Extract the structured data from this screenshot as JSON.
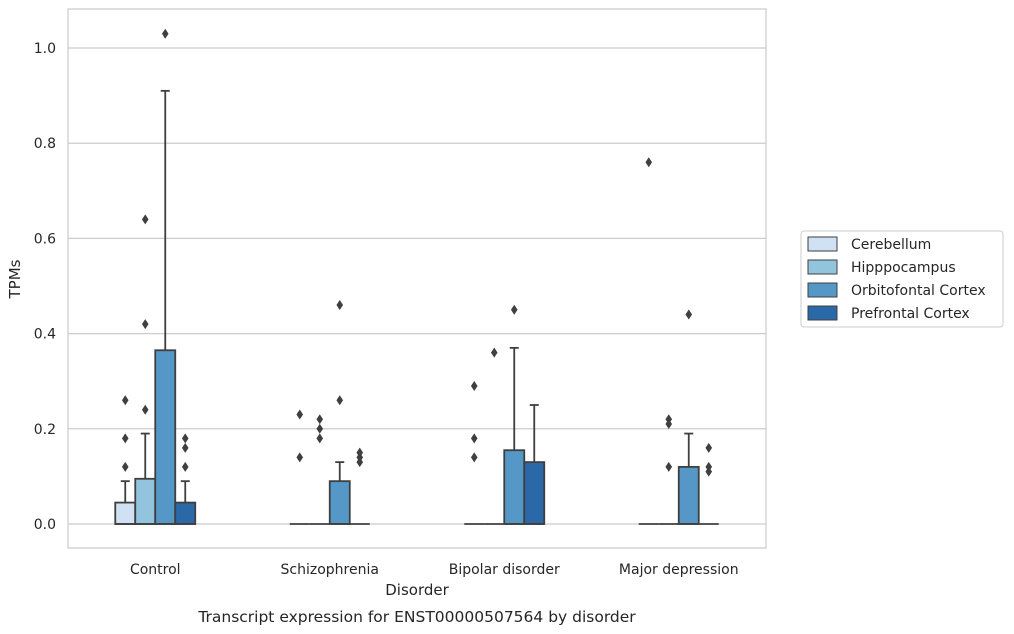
{
  "chart_data": {
    "type": "box",
    "title": "",
    "caption": "Transcript expression for ENST00000507564 by disorder",
    "xlabel": "Disorder",
    "ylabel": "TPMs",
    "ylim": [
      -0.05,
      1.08
    ],
    "yticks": [
      0.0,
      0.2,
      0.4,
      0.6,
      0.8,
      1.0
    ],
    "ytick_labels": [
      "0.0",
      "0.2",
      "0.4",
      "0.6",
      "0.8",
      "1.0"
    ],
    "grid": "horizontal",
    "legend_position": "right",
    "categories": [
      "Control",
      "Schizophrenia",
      "Bipolar disorder",
      "Major depression"
    ],
    "series": [
      {
        "name": "Cerebellum",
        "color": "#cfe1f2",
        "boxes": [
          {
            "whislo": 0.0,
            "q1": 0.0,
            "med": 0.0,
            "q3": 0.045,
            "whishi": 0.09,
            "fliers": [
              0.12,
              0.18,
              0.26
            ]
          },
          {
            "whislo": 0.0,
            "q1": 0.0,
            "med": 0.0,
            "q3": 0.0,
            "whishi": 0.0,
            "fliers": [
              0.14,
              0.23
            ]
          },
          {
            "whislo": 0.0,
            "q1": 0.0,
            "med": 0.0,
            "q3": 0.0,
            "whishi": 0.0,
            "fliers": [
              0.14,
              0.18,
              0.29
            ]
          },
          {
            "whislo": 0.0,
            "q1": 0.0,
            "med": 0.0,
            "q3": 0.0,
            "whishi": 0.0,
            "fliers": [
              0.76
            ]
          }
        ]
      },
      {
        "name": "Hipppocampus",
        "color": "#93c4de",
        "boxes": [
          {
            "whislo": 0.0,
            "q1": 0.0,
            "med": 0.0,
            "q3": 0.095,
            "whishi": 0.19,
            "fliers": [
              0.24,
              0.42,
              0.64
            ]
          },
          {
            "whislo": 0.0,
            "q1": 0.0,
            "med": 0.0,
            "q3": 0.0,
            "whishi": 0.0,
            "fliers": [
              0.18,
              0.2,
              0.22
            ]
          },
          {
            "whislo": 0.0,
            "q1": 0.0,
            "med": 0.0,
            "q3": 0.0,
            "whishi": 0.0,
            "fliers": [
              0.36
            ]
          },
          {
            "whislo": 0.0,
            "q1": 0.0,
            "med": 0.0,
            "q3": 0.0,
            "whishi": 0.0,
            "fliers": [
              0.12,
              0.21,
              0.22
            ]
          }
        ]
      },
      {
        "name": "Orbitofontal Cortex",
        "color": "#5597c6",
        "boxes": [
          {
            "whislo": 0.0,
            "q1": 0.0,
            "med": 0.0,
            "q3": 0.365,
            "whishi": 0.91,
            "fliers": [
              1.03
            ]
          },
          {
            "whislo": 0.0,
            "q1": 0.0,
            "med": 0.0,
            "q3": 0.09,
            "whishi": 0.13,
            "fliers": [
              0.26,
              0.46
            ]
          },
          {
            "whislo": 0.0,
            "q1": 0.0,
            "med": 0.0,
            "q3": 0.155,
            "whishi": 0.37,
            "fliers": [
              0.45
            ]
          },
          {
            "whislo": 0.0,
            "q1": 0.0,
            "med": 0.0,
            "q3": 0.12,
            "whishi": 0.19,
            "fliers": [
              0.44
            ]
          }
        ]
      },
      {
        "name": "Prefrontal Cortex",
        "color": "#2b68a8",
        "boxes": [
          {
            "whislo": 0.0,
            "q1": 0.0,
            "med": 0.0,
            "q3": 0.045,
            "whishi": 0.09,
            "fliers": [
              0.12,
              0.16,
              0.18
            ]
          },
          {
            "whislo": 0.0,
            "q1": 0.0,
            "med": 0.0,
            "q3": 0.0,
            "whishi": 0.0,
            "fliers": [
              0.13,
              0.14,
              0.15
            ]
          },
          {
            "whislo": 0.0,
            "q1": 0.0,
            "med": 0.0,
            "q3": 0.13,
            "whishi": 0.25,
            "fliers": []
          },
          {
            "whislo": 0.0,
            "q1": 0.0,
            "med": 0.0,
            "q3": 0.0,
            "whishi": 0.0,
            "fliers": [
              0.11,
              0.12,
              0.16
            ]
          }
        ]
      }
    ]
  }
}
